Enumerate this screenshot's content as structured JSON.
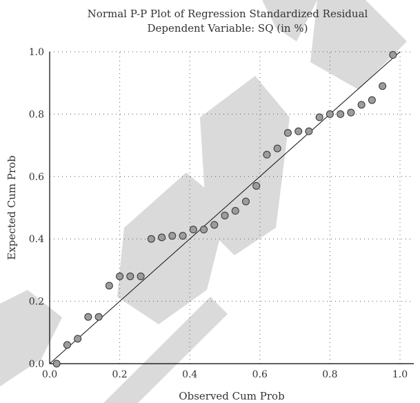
{
  "chart_data": {
    "type": "scatter",
    "title": [
      "Normal P-P Plot of Regression Standardized Residual",
      "Dependent Variable: SQ (in %)"
    ],
    "xlabel": "Observed Cum Prob",
    "ylabel": "Expected Cum Prob",
    "xlim": [
      0.0,
      1.0
    ],
    "ylim": [
      0.0,
      1.0
    ],
    "xticks": [
      "0.0",
      "0.2",
      "0.4",
      "0.6",
      "0.8",
      "1.0"
    ],
    "yticks": [
      "0.0",
      "0.2",
      "0.4",
      "0.6",
      "0.8",
      "1.0"
    ],
    "grid": true,
    "reference_line": [
      [
        0,
        0
      ],
      [
        1,
        1
      ]
    ],
    "points": [
      {
        "x": 0.02,
        "y": 0.0
      },
      {
        "x": 0.05,
        "y": 0.06
      },
      {
        "x": 0.08,
        "y": 0.08
      },
      {
        "x": 0.11,
        "y": 0.15
      },
      {
        "x": 0.14,
        "y": 0.15
      },
      {
        "x": 0.17,
        "y": 0.25
      },
      {
        "x": 0.2,
        "y": 0.28
      },
      {
        "x": 0.23,
        "y": 0.28
      },
      {
        "x": 0.26,
        "y": 0.28
      },
      {
        "x": 0.29,
        "y": 0.4
      },
      {
        "x": 0.32,
        "y": 0.405
      },
      {
        "x": 0.35,
        "y": 0.41
      },
      {
        "x": 0.38,
        "y": 0.41
      },
      {
        "x": 0.41,
        "y": 0.43
      },
      {
        "x": 0.44,
        "y": 0.43
      },
      {
        "x": 0.47,
        "y": 0.445
      },
      {
        "x": 0.5,
        "y": 0.475
      },
      {
        "x": 0.53,
        "y": 0.49
      },
      {
        "x": 0.56,
        "y": 0.52
      },
      {
        "x": 0.59,
        "y": 0.57
      },
      {
        "x": 0.62,
        "y": 0.67
      },
      {
        "x": 0.65,
        "y": 0.69
      },
      {
        "x": 0.68,
        "y": 0.74
      },
      {
        "x": 0.71,
        "y": 0.745
      },
      {
        "x": 0.74,
        "y": 0.745
      },
      {
        "x": 0.77,
        "y": 0.79
      },
      {
        "x": 0.8,
        "y": 0.8
      },
      {
        "x": 0.83,
        "y": 0.8
      },
      {
        "x": 0.86,
        "y": 0.805
      },
      {
        "x": 0.89,
        "y": 0.83
      },
      {
        "x": 0.92,
        "y": 0.845
      },
      {
        "x": 0.95,
        "y": 0.89
      },
      {
        "x": 0.98,
        "y": 0.99
      }
    ]
  },
  "watermark": {
    "text": "RETRACTED",
    "color": "#dadada"
  }
}
